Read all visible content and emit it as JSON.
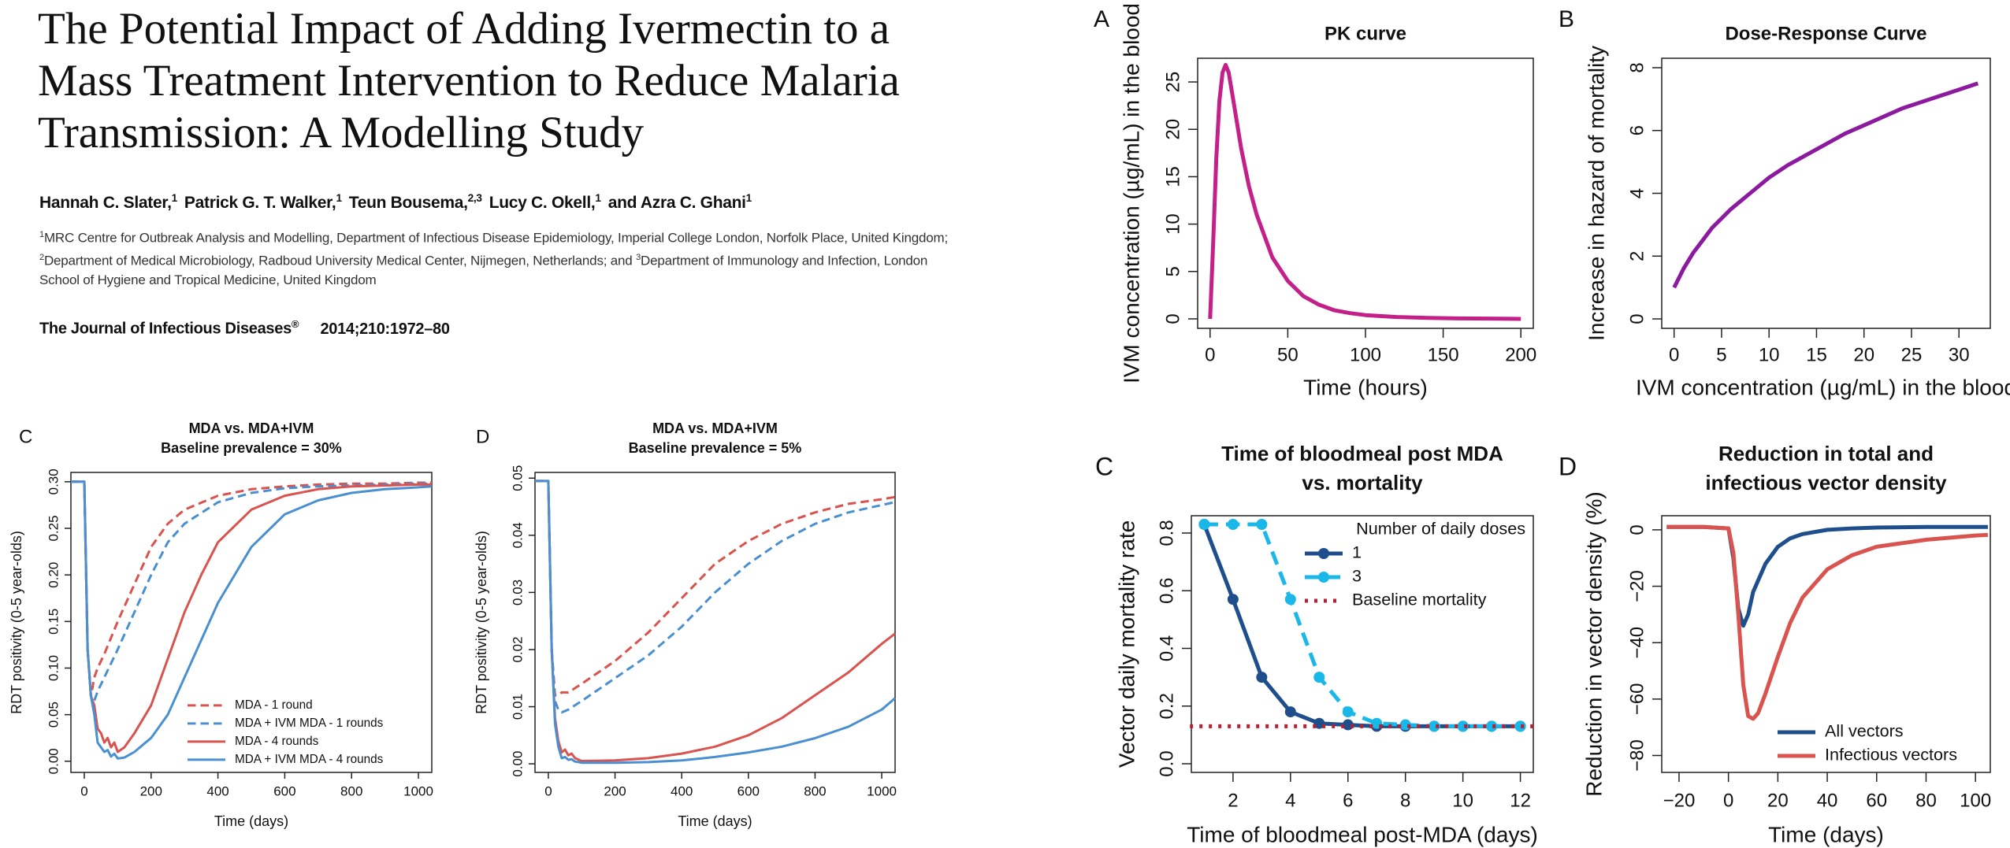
{
  "header": {
    "title": [
      "The Potential Impact of Adding Ivermectin to a",
      "Mass Treatment Intervention to Reduce Malaria",
      "Transmission: A Modelling Study"
    ],
    "authors": [
      {
        "name": "Hannah C. Slater,",
        "sup": "1"
      },
      {
        "name": "Patrick G. T. Walker,",
        "sup": "1"
      },
      {
        "name": "Teun Bousema,",
        "sup": "2,3"
      },
      {
        "name": "Lucy C. Okell,",
        "sup": "1"
      },
      {
        "name": "and Azra C. Ghani",
        "sup": "1"
      }
    ],
    "affiliations": [
      {
        "sup": "1",
        "text": "MRC Centre for Outbreak Analysis and Modelling, Department of Infectious Disease Epidemiology, Imperial College London, Norfolk Place, United Kingdom;"
      },
      {
        "sup": "2",
        "text": "Department of Medical Microbiology, Radboud University Medical Center, Nijmegen, Netherlands; and"
      },
      {
        "sup": "3",
        "text": "Department of Immunology and Infection, London School of Hygiene and Tropical Medicine, United Kingdom"
      }
    ],
    "journal": {
      "name": "The Journal of Infectious Diseases",
      "sup": "®",
      "citation": "2014;210:1972–80"
    }
  },
  "chart_data": [
    {
      "type": "line",
      "panel": "A",
      "title": [
        "PK curve"
      ],
      "x_label": "Time (hours)",
      "y_label": "IVM concentration (µg/mL) in the blood",
      "x": [
        0,
        2,
        4,
        6,
        8,
        10,
        12,
        15,
        20,
        25,
        30,
        40,
        50,
        60,
        70,
        80,
        90,
        100,
        120,
        140,
        160,
        180,
        200
      ],
      "series": [
        {
          "name": "IVM concentration",
          "color": "#c4208a",
          "style": "solid",
          "values": [
            0,
            8,
            17,
            23,
            26,
            26.8,
            26,
            23,
            18,
            14,
            11,
            6.5,
            4,
            2.4,
            1.5,
            0.9,
            0.6,
            0.4,
            0.2,
            0.1,
            0.05,
            0.03,
            0
          ]
        }
      ],
      "xlim": [
        -8,
        208
      ],
      "ylim": [
        -1,
        27.5
      ],
      "xticks": [
        0,
        50,
        100,
        150,
        200
      ],
      "yticks": [
        0,
        5,
        10,
        15,
        20,
        25
      ]
    },
    {
      "type": "line",
      "panel": "B",
      "title": [
        "Dose-Response Curve"
      ],
      "x_label": "IVM concentration (µg/mL) in the blood",
      "y_label": "Increase in hazard of mortality",
      "x": [
        0,
        1,
        2,
        4,
        6,
        8,
        10,
        12,
        15,
        18,
        21,
        24,
        27,
        30,
        32
      ],
      "series": [
        {
          "name": "Hazard increase",
          "color": "#8b1a9e",
          "style": "solid",
          "values": [
            1,
            1.6,
            2.1,
            2.9,
            3.5,
            4.0,
            4.5,
            4.9,
            5.4,
            5.9,
            6.3,
            6.7,
            7.0,
            7.3,
            7.5
          ]
        }
      ],
      "xlim": [
        -1.3,
        33.3
      ],
      "ylim": [
        -0.3,
        8.3
      ],
      "xticks": [
        0,
        5,
        10,
        15,
        20,
        25,
        30
      ],
      "yticks": [
        0,
        2,
        4,
        6,
        8
      ]
    },
    {
      "type": "line",
      "panel": "C",
      "title": [
        "MDA vs. MDA+IVM",
        "Baseline prevalence = 30%"
      ],
      "x_label": "Time (days)",
      "y_label": "RDT positivity (0-5 year-olds)",
      "legend": "bottomright",
      "series": [
        {
          "name": "MDA - 1 round",
          "color": "#d9534f",
          "style": "dashed",
          "x": [
            -40,
            0,
            10,
            20,
            30,
            40,
            60,
            100,
            150,
            200,
            250,
            300,
            400,
            500,
            600,
            700,
            800,
            900,
            1000,
            1040
          ],
          "values": [
            0.3,
            0.3,
            0.12,
            0.07,
            0.09,
            0.1,
            0.115,
            0.15,
            0.19,
            0.23,
            0.255,
            0.27,
            0.285,
            0.292,
            0.295,
            0.297,
            0.298,
            0.298,
            0.299,
            0.299
          ]
        },
        {
          "name": "MDA + IVM MDA - 1 rounds",
          "color": "#4a90d0",
          "style": "dashed",
          "x": [
            -40,
            0,
            10,
            20,
            30,
            40,
            60,
            100,
            150,
            200,
            250,
            300,
            400,
            500,
            600,
            700,
            800,
            900,
            1000,
            1040
          ],
          "values": [
            0.3,
            0.3,
            0.12,
            0.07,
            0.065,
            0.075,
            0.09,
            0.12,
            0.16,
            0.2,
            0.235,
            0.255,
            0.278,
            0.288,
            0.293,
            0.295,
            0.296,
            0.297,
            0.298,
            0.298
          ]
        },
        {
          "name": "MDA - 4 rounds",
          "color": "#d9534f",
          "style": "solid",
          "x": [
            -40,
            0,
            10,
            20,
            30,
            40,
            50,
            60,
            70,
            80,
            90,
            100,
            120,
            150,
            200,
            250,
            300,
            350,
            400,
            500,
            600,
            700,
            800,
            900,
            1000,
            1040
          ],
          "values": [
            0.3,
            0.3,
            0.12,
            0.07,
            0.06,
            0.035,
            0.03,
            0.02,
            0.025,
            0.015,
            0.02,
            0.01,
            0.015,
            0.03,
            0.06,
            0.11,
            0.16,
            0.2,
            0.235,
            0.27,
            0.285,
            0.292,
            0.295,
            0.296,
            0.297,
            0.297
          ]
        },
        {
          "name": "MDA + IVM MDA - 4 rounds",
          "color": "#4a90d0",
          "style": "solid",
          "x": [
            -40,
            0,
            10,
            20,
            30,
            40,
            50,
            60,
            70,
            80,
            90,
            100,
            120,
            150,
            200,
            250,
            300,
            350,
            400,
            500,
            600,
            700,
            800,
            900,
            1000,
            1040
          ],
          "values": [
            0.3,
            0.3,
            0.12,
            0.07,
            0.05,
            0.02,
            0.015,
            0.01,
            0.012,
            0.005,
            0.008,
            0.003,
            0.004,
            0.01,
            0.025,
            0.05,
            0.09,
            0.13,
            0.17,
            0.23,
            0.265,
            0.28,
            0.288,
            0.292,
            0.294,
            0.295
          ]
        }
      ],
      "xlim": [
        -40,
        1040
      ],
      "ylim": [
        -0.012,
        0.31
      ],
      "xticks": [
        0,
        200,
        400,
        600,
        800,
        1000
      ],
      "yticks": [
        {
          "value": 0,
          "label": "0.00"
        },
        0.05,
        {
          "value": 0.1,
          "label": "0.10"
        },
        0.15,
        {
          "value": 0.2,
          "label": "0.20"
        },
        0.25,
        {
          "value": 0.3,
          "label": "0.30"
        }
      ]
    },
    {
      "type": "line",
      "panel": "D",
      "title": [
        "MDA vs. MDA+IVM",
        "Baseline prevalence = 5%"
      ],
      "x_label": "Time (days)",
      "y_label": "RDT positivity (0-5 year-olds)",
      "series": [
        {
          "name": "MDA - 1 round",
          "color": "#d9534f",
          "style": "dashed",
          "x": [
            -40,
            0,
            10,
            20,
            30,
            40,
            60,
            100,
            200,
            300,
            400,
            500,
            600,
            700,
            800,
            900,
            1000,
            1040
          ],
          "values": [
            0.0495,
            0.0495,
            0.02,
            0.012,
            0.012,
            0.0125,
            0.0125,
            0.014,
            0.018,
            0.023,
            0.029,
            0.035,
            0.039,
            0.042,
            0.044,
            0.0455,
            0.0463,
            0.0467
          ]
        },
        {
          "name": "MDA + IVM MDA - 1 rounds",
          "color": "#4a90d0",
          "style": "dashed",
          "x": [
            -40,
            0,
            10,
            20,
            30,
            40,
            60,
            100,
            200,
            300,
            400,
            500,
            600,
            700,
            800,
            900,
            1000,
            1040
          ],
          "values": [
            0.0495,
            0.0495,
            0.02,
            0.011,
            0.0095,
            0.009,
            0.0095,
            0.011,
            0.015,
            0.019,
            0.024,
            0.03,
            0.035,
            0.039,
            0.042,
            0.044,
            0.0453,
            0.0458
          ]
        },
        {
          "name": "MDA - 4 rounds",
          "color": "#d9534f",
          "style": "solid",
          "x": [
            -40,
            0,
            10,
            20,
            30,
            40,
            50,
            60,
            70,
            80,
            100,
            200,
            300,
            400,
            500,
            600,
            700,
            800,
            900,
            1000,
            1040
          ],
          "values": [
            0.0495,
            0.0495,
            0.02,
            0.008,
            0.004,
            0.002,
            0.0025,
            0.0015,
            0.0018,
            0.001,
            0.0005,
            0.0006,
            0.001,
            0.0018,
            0.003,
            0.005,
            0.008,
            0.012,
            0.016,
            0.021,
            0.0228
          ]
        },
        {
          "name": "MDA + IVM MDA - 4 rounds",
          "color": "#4a90d0",
          "style": "solid",
          "x": [
            -40,
            0,
            10,
            20,
            30,
            40,
            50,
            60,
            70,
            80,
            100,
            200,
            300,
            400,
            500,
            600,
            700,
            800,
            900,
            1000,
            1040
          ],
          "values": [
            0.0495,
            0.0495,
            0.02,
            0.007,
            0.003,
            0.001,
            0.0012,
            0.0007,
            0.0008,
            0.0004,
            0.0002,
            0.0002,
            0.0003,
            0.0006,
            0.0012,
            0.002,
            0.003,
            0.0045,
            0.0065,
            0.0095,
            0.0115
          ]
        }
      ],
      "xlim": [
        -40,
        1040
      ],
      "ylim": [
        -0.0015,
        0.051
      ],
      "xticks": [
        0,
        200,
        400,
        600,
        800,
        1000
      ],
      "yticks": [
        {
          "value": 0,
          "label": "0.00"
        },
        0.01,
        0.02,
        0.03,
        0.04,
        0.05
      ]
    },
    {
      "type": "line",
      "panel": "C",
      "title": [
        "Time of bloodmeal post MDA",
        "vs.  mortality"
      ],
      "x_label": "Time of bloodmeal post-MDA (days)",
      "y_label": "Vector daily mortality rate",
      "legend": "topright",
      "legend_title": "Number of daily doses",
      "series": [
        {
          "name": "1",
          "color": "#1f4e8c",
          "style": "solid",
          "marker": true,
          "x": [
            1,
            2,
            3,
            4,
            5,
            6,
            7,
            8,
            9,
            10,
            11,
            12
          ],
          "values": [
            0.83,
            0.57,
            0.3,
            0.18,
            0.14,
            0.135,
            0.13,
            0.13,
            0.13,
            0.13,
            0.13,
            0.13
          ]
        },
        {
          "name": "3",
          "color": "#1ab8e8",
          "style": "dashed",
          "marker": true,
          "x": [
            1,
            2,
            3,
            4,
            5,
            6,
            7,
            8,
            9,
            10,
            11,
            12
          ],
          "values": [
            0.83,
            0.83,
            0.83,
            0.57,
            0.3,
            0.18,
            0.14,
            0.135,
            0.13,
            0.13,
            0.13,
            0.13
          ]
        },
        {
          "name": "Baseline mortality",
          "color": "#b22234",
          "style": "dotted",
          "x": [
            0.5,
            12.5
          ],
          "values": [
            0.13,
            0.13
          ]
        }
      ],
      "xlim": [
        0.55,
        12.45
      ],
      "ylim": [
        -0.03,
        0.86
      ],
      "xticks": [
        2,
        4,
        6,
        8,
        10,
        12
      ],
      "yticks": [
        {
          "value": 0,
          "label": "0.0"
        },
        0.2,
        0.4,
        0.6,
        0.8
      ]
    },
    {
      "type": "line",
      "panel": "D",
      "title": [
        "Reduction in total and",
        "infectious vector density"
      ],
      "x_label": "Time (days)",
      "y_label": "Reduction in vector density (%)",
      "legend": "bottomright",
      "series": [
        {
          "name": "All vectors",
          "color": "#1f4e8c",
          "style": "solid",
          "x": [
            -25,
            -10,
            0,
            2,
            4,
            6,
            8,
            10,
            15,
            20,
            25,
            30,
            40,
            50,
            60,
            80,
            100,
            105
          ],
          "values": [
            1,
            1,
            0.5,
            -10,
            -28,
            -34,
            -30,
            -22,
            -12,
            -6,
            -3,
            -1.5,
            0,
            0.5,
            0.8,
            1,
            1,
            1
          ]
        },
        {
          "name": "Infectious vectors",
          "color": "#d9534f",
          "style": "solid",
          "x": [
            -25,
            -10,
            0,
            2,
            4,
            6,
            8,
            10,
            12,
            15,
            20,
            25,
            30,
            40,
            50,
            60,
            80,
            100,
            105
          ],
          "values": [
            1,
            1,
            0.5,
            -8,
            -30,
            -55,
            -66,
            -67,
            -65,
            -58,
            -45,
            -33,
            -24,
            -14,
            -9,
            -6,
            -3.5,
            -2,
            -1.8
          ]
        }
      ],
      "xlim": [
        -27,
        106
      ],
      "ylim": [
        -86,
        5
      ],
      "xticks": [
        {
          "value": -20,
          "label": "−20"
        },
        0,
        20,
        40,
        60,
        80,
        100
      ],
      "yticks": [
        {
          "value": -80,
          "label": "−80"
        },
        {
          "value": -60,
          "label": "−60"
        },
        {
          "value": -40,
          "label": "−40"
        },
        {
          "value": -20,
          "label": "−20"
        },
        0
      ]
    }
  ]
}
